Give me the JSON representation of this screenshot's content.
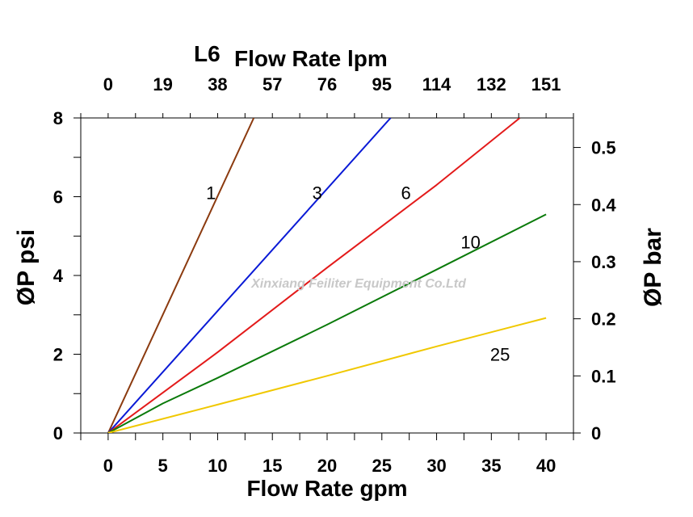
{
  "chart_data": {
    "type": "line",
    "model": "L6",
    "title_top": "Flow Rate lpm",
    "xlabel": "Flow Rate gpm",
    "ylabel": "ØP psi",
    "ylabel_right": "ØP bar",
    "watermark": "Xinxiang Feiliter Equipment Co.Ltd",
    "xlim": [
      -2.5,
      42.5
    ],
    "ylim": [
      0,
      8
    ],
    "x_ticks": [
      "0",
      "5",
      "10",
      "15",
      "20",
      "25",
      "30",
      "35",
      "40"
    ],
    "x_tick_values": [
      0,
      5,
      10,
      15,
      20,
      25,
      30,
      35,
      40
    ],
    "y_ticks": [
      "0",
      "2",
      "4",
      "6",
      "8"
    ],
    "y_tick_values": [
      0,
      2,
      4,
      6,
      8
    ],
    "top_ticks": [
      "0",
      "19",
      "38",
      "57",
      "76",
      "95",
      "114",
      "132",
      "151"
    ],
    "top_tick_gpm": [
      0,
      5,
      10,
      15,
      20,
      25,
      30,
      35,
      40
    ],
    "right_ticks": [
      "0",
      "0.1",
      "0.2",
      "0.3",
      "0.4",
      "0.5"
    ],
    "right_tick_psi": [
      0,
      1.45,
      2.9,
      4.35,
      5.8,
      7.25
    ],
    "grid": false,
    "series": [
      {
        "name": "1",
        "color": "#8b3a0f",
        "x": [
          0,
          13.3
        ],
        "y": [
          0,
          8
        ],
        "label_at": [
          9.4,
          6.1
        ]
      },
      {
        "name": "3",
        "color": "#0a1ad6",
        "x": [
          0,
          10,
          25.8
        ],
        "y": [
          0,
          3.1,
          8
        ],
        "label_at": [
          19.1,
          6.1
        ]
      },
      {
        "name": "6",
        "color": "#e31a1a",
        "x": [
          0,
          10,
          20,
          30,
          37.6
        ],
        "y": [
          0,
          2.05,
          4.2,
          6.3,
          8
        ],
        "label_at": [
          27.2,
          6.1
        ]
      },
      {
        "name": "10",
        "color": "#0a7a0a",
        "x": [
          0,
          5,
          10,
          20,
          30,
          40
        ],
        "y": [
          0,
          0.75,
          1.4,
          2.75,
          4.15,
          5.55
        ],
        "label_at": [
          33.1,
          4.85
        ]
      },
      {
        "name": "25",
        "color": "#f0c800",
        "x": [
          0,
          10,
          20,
          30,
          40
        ],
        "y": [
          0,
          0.72,
          1.45,
          2.2,
          2.92
        ],
        "label_at": [
          35.8,
          2.0
        ]
      }
    ]
  }
}
